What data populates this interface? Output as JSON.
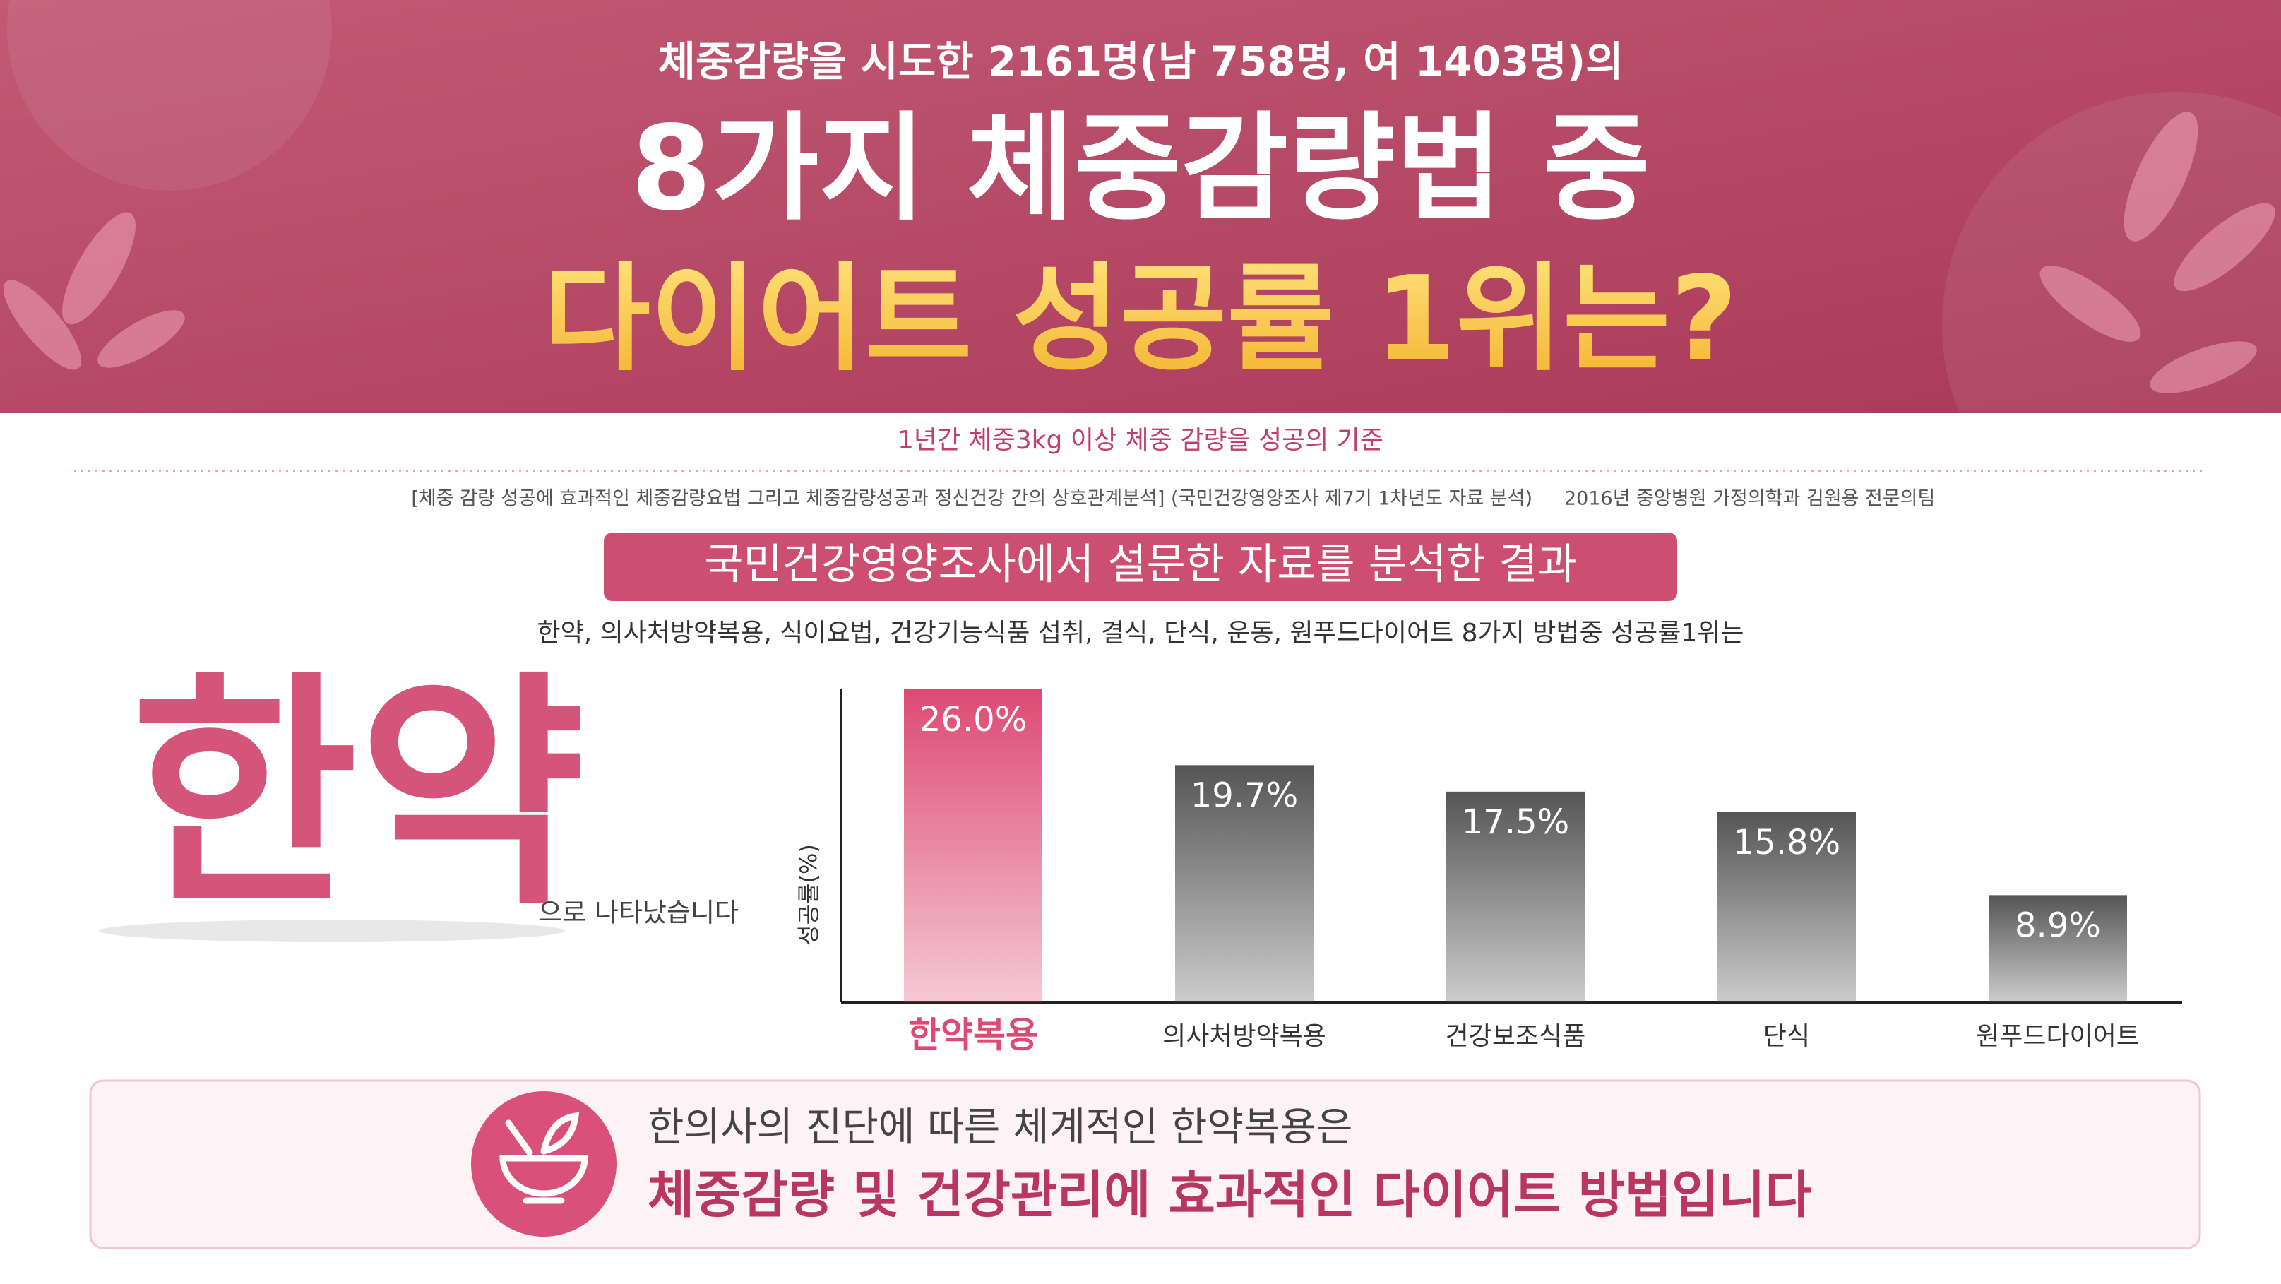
{
  "header": {
    "intro": "체중감량을 시도한 2161명(남 758명, 여 1403명)의",
    "title_line1": "8가지 체중감량법 중",
    "title_line2": "다이어트 성공률 1위는?"
  },
  "criterion": "1년간 체중3kg 이상 체중 감량을 성공의 기준",
  "source": {
    "study": "[체중 감량 성공에 효과적인 체중감량요법 그리고 체중감량성공과 정신건강 간의 상호관계분석] (국민건강영양조사 제7기 1차년도 자료 분석)",
    "authors": "2016년 중앙병원 가정의학과 김원용 전문의팀"
  },
  "banner": "국민건강영양조사에서 설문한 자료를 분석한 결과",
  "methods_text": "한약, 의사처방약복용, 식이요법, 건강기능식품 섭취, 결식, 단식, 운동, 원푸드다이어트 8가지 방법중 성공률1위는",
  "answer": {
    "word": "한약",
    "suffix": "으로 나타났습니다"
  },
  "chart_data": {
    "type": "bar",
    "y_label": "성공률(%)",
    "categories": [
      "한약복용",
      "의사처방약복용",
      "건강보조식품",
      "단식",
      "원푸드다이어트"
    ],
    "values": [
      26.0,
      19.7,
      17.5,
      15.8,
      8.9
    ],
    "value_labels": [
      "26.0%",
      "19.7%",
      "17.5%",
      "15.8%",
      "8.9%"
    ],
    "colors": [
      "#dd4a72",
      "#555555",
      "#555555",
      "#555555",
      "#555555"
    ],
    "highlight_color": "#dd4a72",
    "ylim": [
      0,
      26
    ]
  },
  "conclusion": {
    "line1": "한의사의 진단에 따른 체계적인 한약복용은",
    "line2": "체중감량 및 건강관리에 효과적인 다이어트 방법입니다"
  }
}
